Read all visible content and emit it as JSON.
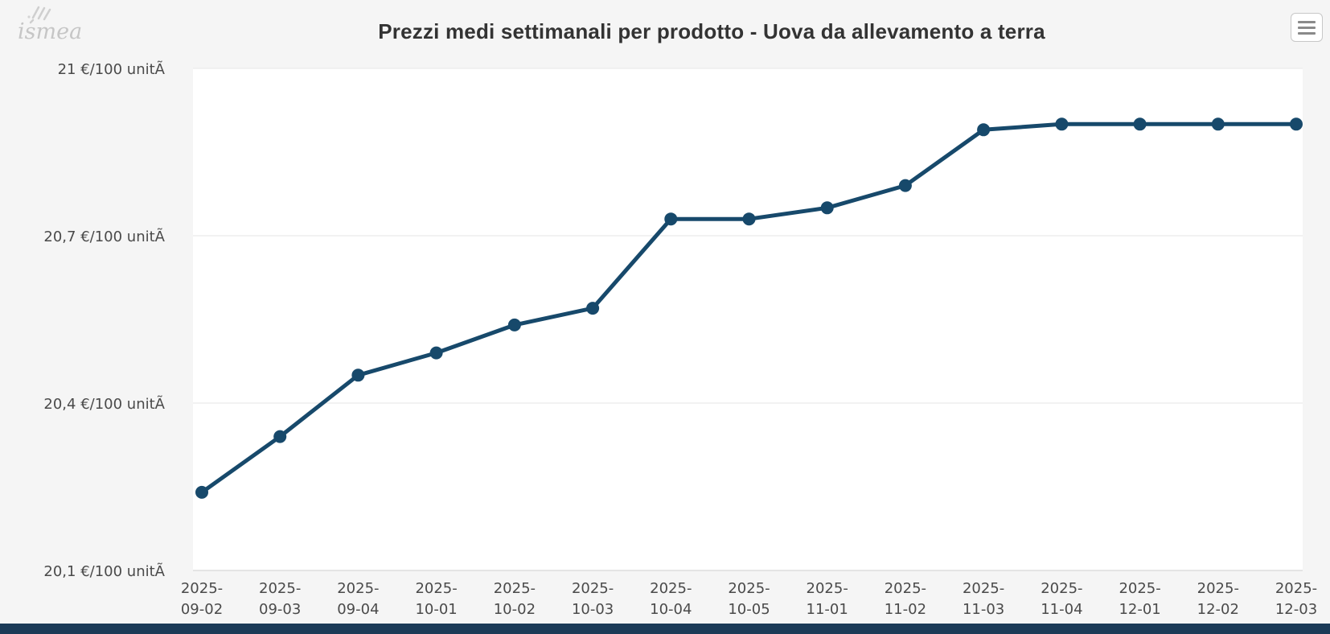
{
  "header": {
    "logo_text": "ismea",
    "title": "Prezzi medi settimanali per prodotto - Uova da allevamento a terra",
    "menu_button_icon": "hamburger-icon"
  },
  "colors": {
    "series_line": "#17496b",
    "marker": "#17496b",
    "background": "#f5f5f5",
    "plot_background": "#ffffff",
    "grid_line": "#e6e6e6",
    "axis_line": "#d0d0d0",
    "axis_label_text": "#4a4a4a",
    "title_text": "#333333",
    "footer_bar": "#1b3a57",
    "logo_gray": "#c6c6c6"
  },
  "chart_data": {
    "type": "line",
    "title": "Prezzi medi settimanali per prodotto - Uova da allevamento a terra",
    "xlabel": "",
    "ylabel": "€/100 unitÃ",
    "ylim": [
      20.1,
      21.0
    ],
    "grid": true,
    "legend": "none",
    "categories": [
      "2025-09-02",
      "2025-09-03",
      "2025-09-04",
      "2025-10-01",
      "2025-10-02",
      "2025-10-03",
      "2025-10-04",
      "2025-10-05",
      "2025-11-01",
      "2025-11-02",
      "2025-11-03",
      "2025-11-04",
      "2025-12-01",
      "2025-12-02",
      "2025-12-03"
    ],
    "series": [
      {
        "name": "Uova da allevamento a terra",
        "values": [
          20.24,
          20.34,
          20.45,
          20.49,
          20.54,
          20.57,
          20.73,
          20.73,
          20.75,
          20.79,
          20.89,
          20.9,
          20.9,
          20.9,
          20.9
        ]
      }
    ],
    "yticks": [
      {
        "value": 21.0,
        "label": "21 €/100 unitÃ"
      },
      {
        "value": 20.7,
        "label": "20,7 €/100 unitÃ"
      },
      {
        "value": 20.4,
        "label": "20,4 €/100 unitÃ"
      },
      {
        "value": 20.1,
        "label": "20,1 €/100 unitÃ"
      }
    ]
  }
}
